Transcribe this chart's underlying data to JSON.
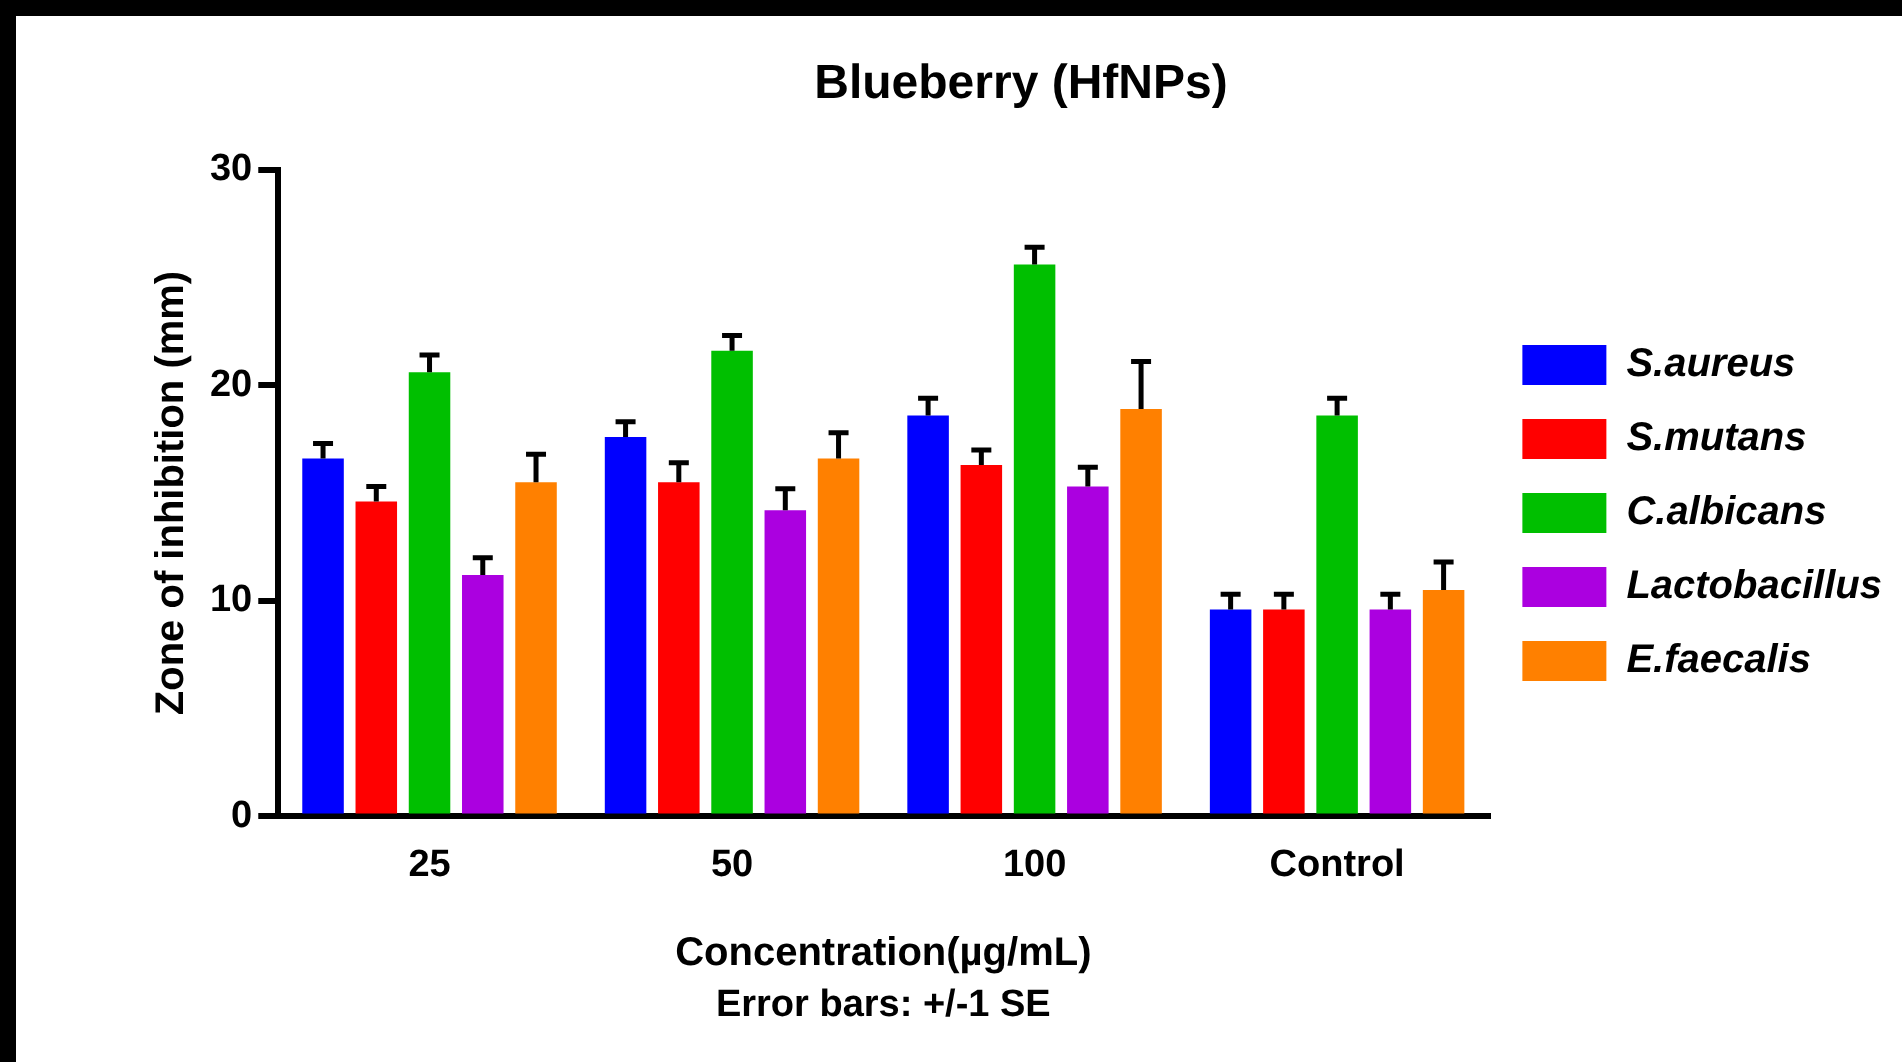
{
  "chart_data": {
    "type": "bar",
    "title": "Blueberry (HfNPs)",
    "xlabel": "Concentration(µg/mL)",
    "ylabel": "Zone of inhibition (mm)",
    "annotations": [
      "Error bars: +/-1 SE"
    ],
    "categories": [
      "25",
      "50",
      "100",
      "Control"
    ],
    "series": [
      {
        "name": "S.aureus",
        "color": "#0000ff",
        "values": [
          16.6,
          17.6,
          18.6,
          9.6
        ],
        "errors": [
          0.7,
          0.7,
          0.8,
          0.7
        ]
      },
      {
        "name": "S.mutans",
        "color": "#ff0000",
        "values": [
          14.6,
          15.5,
          16.3,
          9.6
        ],
        "errors": [
          0.7,
          0.9,
          0.7,
          0.7
        ]
      },
      {
        "name": "C.albicans",
        "color": "#00bf00",
        "values": [
          20.6,
          21.6,
          25.6,
          18.6
        ],
        "errors": [
          0.8,
          0.7,
          0.8,
          0.8
        ]
      },
      {
        "name": "Lactobacillus",
        "color": "#ab00e0",
        "values": [
          11.2,
          14.2,
          15.3,
          9.6
        ],
        "errors": [
          0.8,
          1.0,
          0.9,
          0.7
        ]
      },
      {
        "name": "E.faecalis",
        "color": "#ff8000",
        "values": [
          15.5,
          16.6,
          18.9,
          10.5
        ],
        "errors": [
          1.3,
          1.2,
          2.2,
          1.3
        ]
      }
    ],
    "ylim": [
      0,
      30
    ],
    "yticks": [
      0,
      10,
      20,
      30
    ],
    "grid": false,
    "legend": "right"
  }
}
